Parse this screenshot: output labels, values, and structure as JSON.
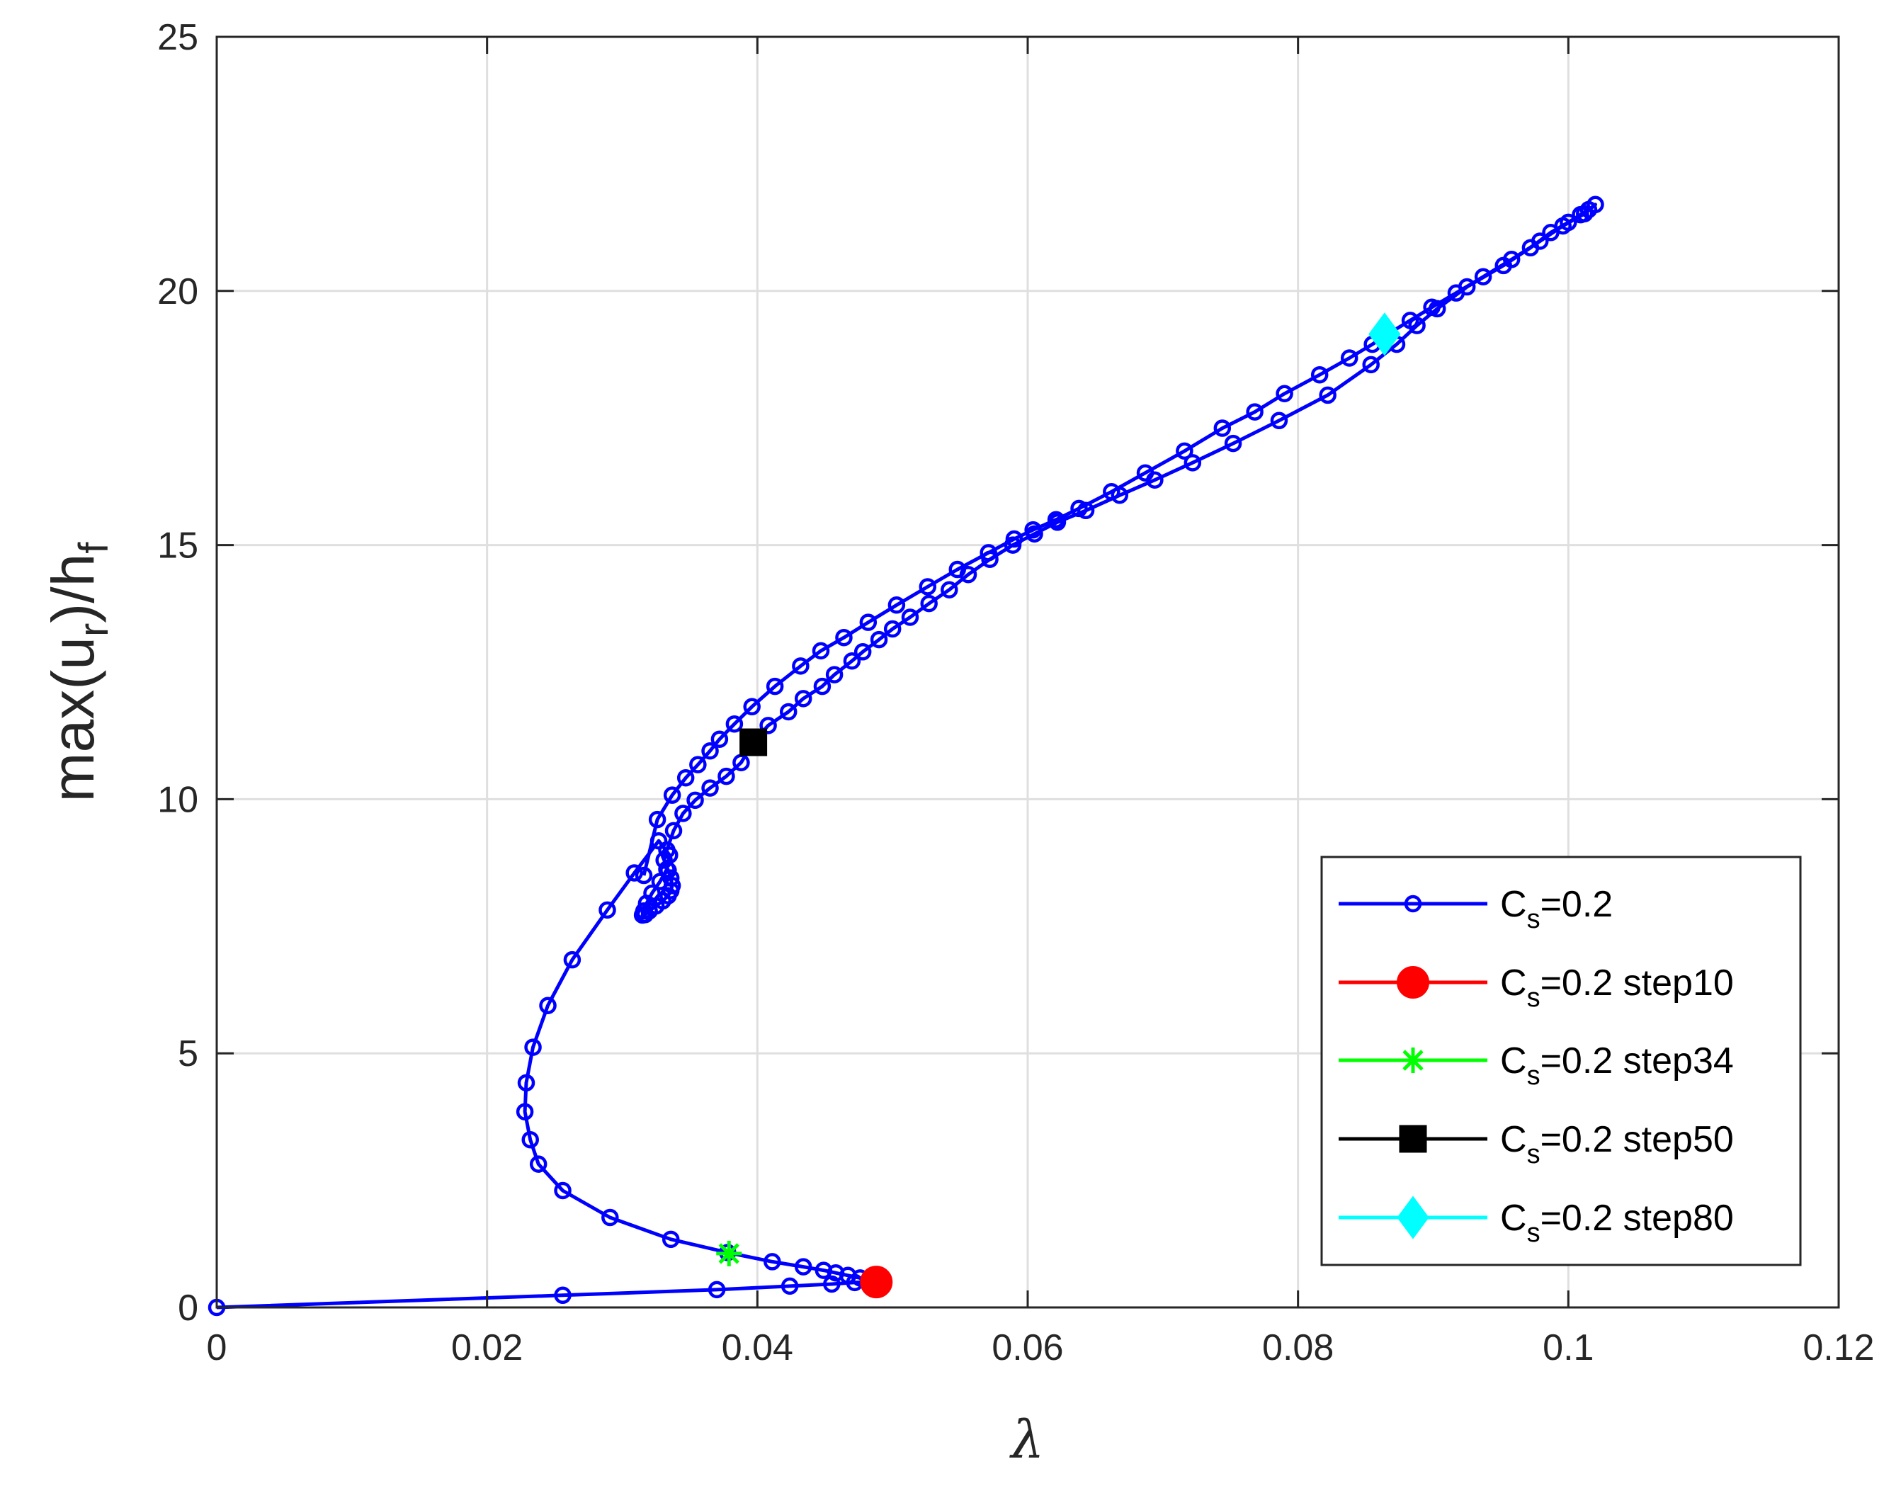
{
  "chart_data": {
    "type": "line",
    "xlabel": "λ",
    "ylabel": {
      "main": "max(u",
      "sub1": "r",
      "mid": ")/h",
      "sub2": "f"
    },
    "xlim": [
      0,
      0.12
    ],
    "ylim": [
      0,
      25
    ],
    "xticks": [
      0,
      0.02,
      0.04,
      0.06,
      0.08,
      0.1,
      0.12
    ],
    "xtick_labels": [
      "0",
      "0.02",
      "0.04",
      "0.06",
      "0.08",
      "0.1",
      "0.12"
    ],
    "yticks": [
      0,
      5,
      10,
      15,
      20,
      25
    ],
    "ytick_labels": [
      "0",
      "5",
      "10",
      "15",
      "20",
      "25"
    ],
    "grid": true,
    "legend_position": "bottom-right",
    "series": [
      {
        "name": "C_s=0.2",
        "legend_main": "C",
        "legend_sub": "s",
        "legend_rest": "=0.2",
        "color": "#0000ff",
        "marker": "circle-open",
        "x": [
          0,
          0.0256,
          0.037,
          0.0424,
          0.0455,
          0.0472,
          0.0482,
          0.0486,
          0.0483,
          0.0476,
          0.0467,
          0.0458,
          0.0449,
          0.0434,
          0.0411,
          0.0378,
          0.0336,
          0.0291,
          0.0256,
          0.0238,
          0.0232,
          0.0228,
          0.0229,
          0.0234,
          0.0245,
          0.0263,
          0.0289,
          0.0309,
          0.0327,
          0.0335,
          0.0333,
          0.0328,
          0.0322,
          0.0318,
          0.0316,
          0.0315,
          0.0317,
          0.032,
          0.0325,
          0.033,
          0.0334,
          0.0336,
          0.0337,
          0.0336,
          0.0334,
          0.0331,
          0.0333,
          0.0338,
          0.0345,
          0.0354,
          0.0365,
          0.0377,
          0.0388,
          0.0397,
          0.0408,
          0.0423,
          0.0434,
          0.0448,
          0.0457,
          0.047,
          0.0478,
          0.049,
          0.05,
          0.0513,
          0.0527,
          0.0542,
          0.0556,
          0.0572,
          0.0589,
          0.0605,
          0.0622,
          0.0643,
          0.0668,
          0.0694,
          0.0722,
          0.0752,
          0.0786,
          0.0822,
          0.0854,
          0.0873,
          0.0888,
          0.0903,
          0.0925,
          0.0952,
          0.0972,
          0.0987,
          0.1,
          0.1009,
          0.1015,
          0.102,
          0.1012,
          0.0996,
          0.0979,
          0.0958,
          0.0937,
          0.0917,
          0.0899,
          0.0883,
          0.0867,
          0.0855,
          0.0838,
          0.0816,
          0.079,
          0.0768,
          0.0744,
          0.0716,
          0.0687,
          0.0662,
          0.0638,
          0.0621,
          0.0604,
          0.059,
          0.0571,
          0.0548,
          0.0526,
          0.0503,
          0.0482,
          0.0464,
          0.0447,
          0.0432,
          0.0413,
          0.0396,
          0.0383,
          0.0372,
          0.0365,
          0.0356,
          0.0347,
          0.0337,
          0.0326,
          0.0316
        ],
        "y": [
          0,
          0.24,
          0.35,
          0.42,
          0.46,
          0.49,
          0.5,
          0.5,
          0.54,
          0.58,
          0.63,
          0.68,
          0.73,
          0.8,
          0.9,
          1.08,
          1.34,
          1.77,
          2.3,
          2.82,
          3.3,
          3.85,
          4.42,
          5.12,
          5.94,
          6.84,
          7.82,
          8.55,
          9.18,
          8.9,
          8.62,
          8.38,
          8.15,
          7.95,
          7.8,
          7.72,
          7.73,
          7.8,
          7.9,
          8.0,
          8.1,
          8.2,
          8.3,
          8.45,
          8.6,
          8.8,
          9.0,
          9.38,
          9.72,
          9.98,
          10.22,
          10.45,
          10.72,
          11.12,
          11.45,
          11.72,
          11.98,
          12.22,
          12.45,
          12.72,
          12.9,
          13.14,
          13.35,
          13.58,
          13.85,
          14.12,
          14.42,
          14.72,
          15.0,
          15.22,
          15.45,
          15.68,
          15.98,
          16.28,
          16.62,
          17.0,
          17.45,
          17.95,
          18.55,
          18.95,
          19.32,
          19.65,
          20.08,
          20.5,
          20.85,
          21.15,
          21.35,
          21.5,
          21.6,
          21.7,
          21.52,
          21.28,
          20.98,
          20.62,
          20.28,
          19.96,
          19.68,
          19.42,
          19.16,
          18.95,
          18.68,
          18.35,
          17.98,
          17.62,
          17.3,
          16.85,
          16.42,
          16.05,
          15.72,
          15.5,
          15.3,
          15.12,
          14.85,
          14.52,
          14.18,
          13.82,
          13.48,
          13.18,
          12.92,
          12.62,
          12.22,
          11.82,
          11.48,
          11.18,
          10.95,
          10.68,
          10.42,
          10.08,
          9.6,
          8.5
        ],
        "marker_every": 1
      },
      {
        "name": "C_s=0.2 step10",
        "legend_main": "C",
        "legend_sub": "s",
        "legend_rest": "=0.2 step10",
        "color": "#ff0000",
        "marker": "circle-filled",
        "x": [
          0.0488
        ],
        "y": [
          0.5
        ]
      },
      {
        "name": "C_s=0.2 step34",
        "legend_main": "C",
        "legend_sub": "s",
        "legend_rest": "=0.2 step34",
        "color": "#00ff00",
        "marker": "asterisk",
        "x": [
          0.0379
        ],
        "y": [
          1.06
        ]
      },
      {
        "name": "C_s=0.2 step50",
        "legend_main": "C",
        "legend_sub": "s",
        "legend_rest": "=0.2 step50",
        "color": "#000000",
        "marker": "square-filled",
        "x": [
          0.0397
        ],
        "y": [
          11.12
        ]
      },
      {
        "name": "C_s=0.2 step80",
        "legend_main": "C",
        "legend_sub": "s",
        "legend_rest": "=0.2 step80",
        "color": "#00ffff",
        "marker": "diamond-filled",
        "x": [
          0.0864
        ],
        "y": [
          19.15
        ]
      }
    ]
  }
}
